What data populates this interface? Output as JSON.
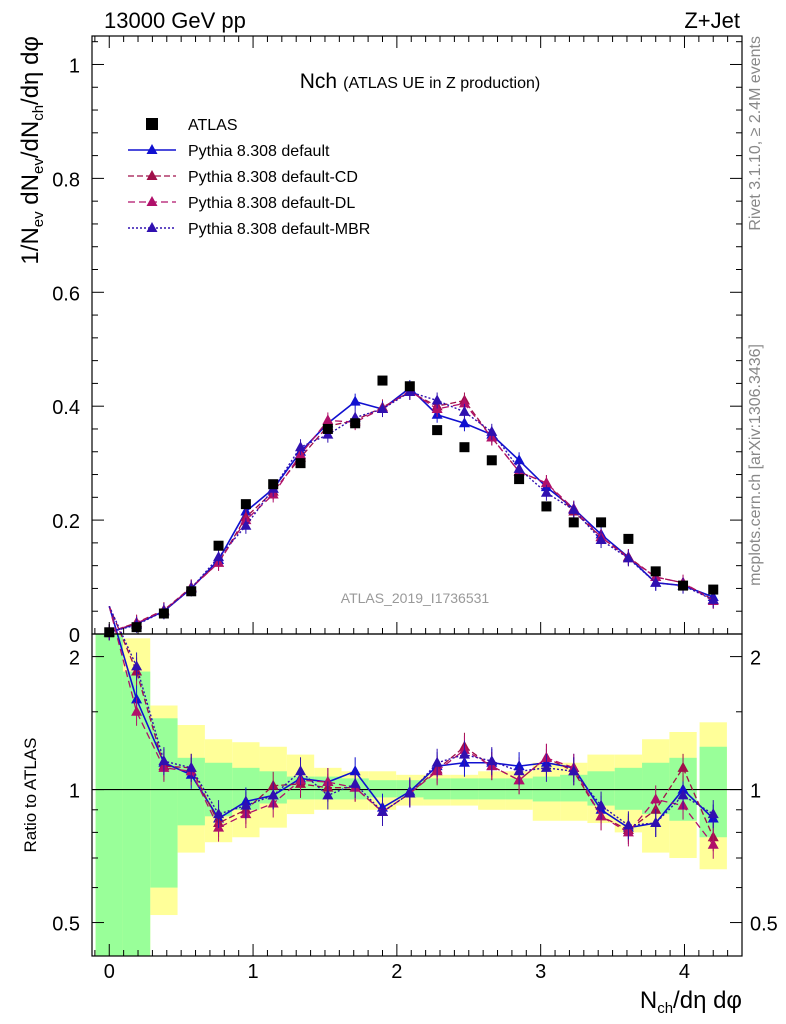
{
  "header": {
    "left": "13000 GeV pp",
    "right": "Z+Jet"
  },
  "plot_title": {
    "main": "Nch",
    "sub": "(ATLAS UE in Z production)"
  },
  "side_labels": {
    "rivet": "Rivet 3.1.10, ≥ 2.4M events",
    "mcplots": "mcplots.cern.ch [arXiv:1306.3436]"
  },
  "watermark": "ATLAS_2019_I1736531",
  "colors": {
    "data": "#000000",
    "default": "#1010d0",
    "cd": "#a0104a",
    "dl": "#b0106a",
    "mbr": "#3010b0",
    "band_green": "#99ff99",
    "band_yellow": "#ffff99"
  },
  "chart_data": [
    {
      "type": "line",
      "ylabel": "1/N_ev dN_ev/dN_ch/dη dφ",
      "xlim": [
        -0.12,
        4.4
      ],
      "ylim": [
        0,
        1.05
      ],
      "yticks": [
        0,
        0.2,
        0.4,
        0.6,
        0.8,
        1
      ],
      "ytick_labels": [
        "0",
        "0.2",
        "0.4",
        "0.6",
        "0.8",
        "1"
      ],
      "legend_position": "top-left",
      "x": [
        0,
        0.19,
        0.38,
        0.57,
        0.76,
        0.95,
        1.14,
        1.33,
        1.52,
        1.71,
        1.9,
        2.09,
        2.28,
        2.47,
        2.66,
        2.85,
        3.04,
        3.23,
        3.42,
        3.61,
        3.8,
        3.99,
        4.2
      ],
      "series": [
        {
          "name": "ATLAS",
          "style": "data",
          "values": [
            0.003,
            0.012,
            0.036,
            0.075,
            0.155,
            0.228,
            0.263,
            0.3,
            0.36,
            0.37,
            0.445,
            0.435,
            0.358,
            0.328,
            0.305,
            0.272,
            0.224,
            0.196,
            0.196,
            0.167,
            0.11,
            0.085,
            0.078
          ]
        },
        {
          "name": "Pythia 8.308 default",
          "style": "default",
          "values": [
            0.003,
            0.018,
            0.04,
            0.08,
            0.13,
            0.215,
            0.255,
            0.32,
            0.37,
            0.408,
            0.395,
            0.432,
            0.385,
            0.37,
            0.35,
            0.305,
            0.258,
            0.22,
            0.175,
            0.135,
            0.09,
            0.085,
            0.065
          ]
        },
        {
          "name": "Pythia 8.308 default-CD",
          "style": "cd",
          "values": [
            0.003,
            0.02,
            0.042,
            0.082,
            0.125,
            0.205,
            0.25,
            0.31,
            0.365,
            0.375,
            0.398,
            0.425,
            0.4,
            0.41,
            0.345,
            0.285,
            0.265,
            0.215,
            0.17,
            0.135,
            0.1,
            0.09,
            0.06
          ]
        },
        {
          "name": "Pythia 8.308 default-DL",
          "style": "dl",
          "values": [
            0.003,
            0.019,
            0.041,
            0.081,
            0.125,
            0.2,
            0.245,
            0.315,
            0.375,
            0.372,
            0.396,
            0.427,
            0.395,
            0.405,
            0.345,
            0.285,
            0.265,
            0.22,
            0.17,
            0.133,
            0.1,
            0.09,
            0.058
          ]
        },
        {
          "name": "Pythia 8.308 default-MBR",
          "style": "mbr",
          "values": [
            0.003,
            0.016,
            0.04,
            0.08,
            0.135,
            0.19,
            0.255,
            0.328,
            0.35,
            0.38,
            0.395,
            0.425,
            0.41,
            0.39,
            0.355,
            0.29,
            0.248,
            0.218,
            0.165,
            0.133,
            0.09,
            0.085,
            0.06
          ]
        }
      ]
    },
    {
      "type": "line",
      "ylabel": "Ratio to ATLAS",
      "xlabel": "N_ch/dη dφ",
      "ylim": [
        0.42,
        2.25
      ],
      "log_y": true,
      "yticks": [
        0.5,
        1,
        2
      ],
      "ytick_labels": [
        "0.5",
        "1",
        "2"
      ],
      "xticks": [
        0,
        1,
        2,
        3,
        4
      ],
      "xtick_labels": [
        "0",
        "1",
        "2",
        "3",
        "4"
      ],
      "x": [
        0,
        0.19,
        0.38,
        0.57,
        0.76,
        0.95,
        1.14,
        1.33,
        1.52,
        1.71,
        1.9,
        2.09,
        2.28,
        2.47,
        2.66,
        2.85,
        3.04,
        3.23,
        3.42,
        3.61,
        3.8,
        3.99,
        4.2
      ],
      "bands": {
        "green": [
          [
            0.2,
            5.0
          ],
          [
            0.4,
            1.85
          ],
          [
            0.6,
            1.45
          ],
          [
            0.83,
            1.18
          ],
          [
            0.87,
            1.15
          ],
          [
            0.9,
            1.12
          ],
          [
            0.93,
            1.1
          ],
          [
            0.95,
            1.07
          ],
          [
            0.95,
            1.07
          ],
          [
            0.95,
            1.06
          ],
          [
            0.96,
            1.05
          ],
          [
            0.96,
            1.05
          ],
          [
            0.95,
            1.06
          ],
          [
            0.95,
            1.06
          ],
          [
            0.95,
            1.06
          ],
          [
            0.95,
            1.06
          ],
          [
            0.94,
            1.07
          ],
          [
            0.94,
            1.08
          ],
          [
            0.92,
            1.1
          ],
          [
            0.9,
            1.12
          ],
          [
            0.88,
            1.15
          ],
          [
            0.85,
            1.18
          ],
          [
            0.78,
            1.25
          ]
        ],
        "yellow": [
          [
            0.2,
            5.0
          ],
          [
            0.38,
            2.2
          ],
          [
            0.52,
            1.55
          ],
          [
            0.72,
            1.4
          ],
          [
            0.76,
            1.3
          ],
          [
            0.78,
            1.28
          ],
          [
            0.82,
            1.25
          ],
          [
            0.88,
            1.2
          ],
          [
            0.9,
            1.12
          ],
          [
            0.9,
            1.1
          ],
          [
            0.9,
            1.1
          ],
          [
            0.92,
            1.08
          ],
          [
            0.92,
            1.08
          ],
          [
            0.92,
            1.08
          ],
          [
            0.9,
            1.1
          ],
          [
            0.9,
            1.1
          ],
          [
            0.85,
            1.15
          ],
          [
            0.85,
            1.15
          ],
          [
            0.84,
            1.2
          ],
          [
            0.8,
            1.2
          ],
          [
            0.72,
            1.3
          ],
          [
            0.7,
            1.35
          ],
          [
            0.66,
            1.42
          ]
        ]
      },
      "series": [
        {
          "name": "Pythia 8.308 default",
          "style": "default",
          "values": [
            2.6,
            1.6,
            1.15,
            1.08,
            0.86,
            0.94,
            0.97,
            1.06,
            1.04,
            1.1,
            0.91,
            0.99,
            1.13,
            1.15,
            1.15,
            1.13,
            1.15,
            1.12,
            0.9,
            0.82,
            0.84,
            1.0,
            0.86
          ]
        },
        {
          "name": "Pythia 8.308 default-CD",
          "style": "cd",
          "values": [
            2.6,
            1.85,
            1.13,
            1.12,
            0.84,
            0.9,
            1.02,
            1.03,
            1.01,
            1.01,
            0.89,
            0.98,
            1.11,
            1.25,
            1.13,
            1.05,
            1.18,
            1.1,
            0.87,
            0.81,
            0.9,
            1.12,
            0.78
          ]
        },
        {
          "name": "Pythia 8.308 default-DL",
          "style": "dl",
          "values": [
            2.6,
            1.5,
            1.12,
            1.1,
            0.82,
            0.88,
            0.93,
            1.05,
            1.04,
            1.01,
            0.89,
            0.98,
            1.1,
            1.23,
            1.13,
            1.05,
            1.18,
            1.12,
            0.87,
            0.8,
            0.95,
            0.92,
            0.75
          ]
        },
        {
          "name": "Pythia 8.308 default-MBR",
          "style": "mbr",
          "values": [
            2.6,
            1.9,
            1.16,
            1.12,
            0.88,
            0.92,
            0.97,
            1.1,
            0.97,
            1.03,
            0.89,
            0.98,
            1.15,
            1.2,
            1.16,
            1.1,
            1.12,
            1.1,
            0.92,
            0.83,
            0.84,
            0.97,
            0.88
          ]
        }
      ]
    }
  ]
}
